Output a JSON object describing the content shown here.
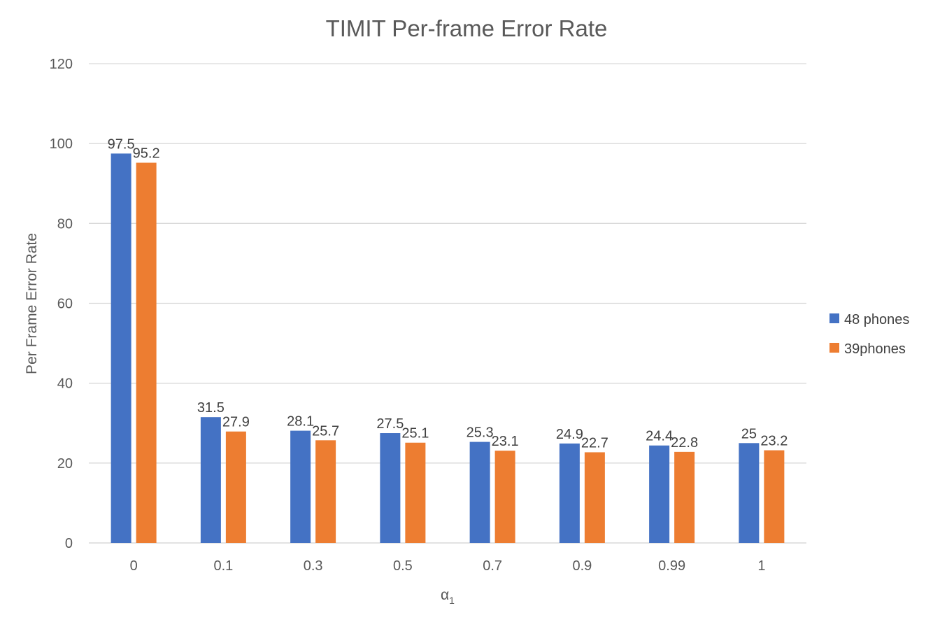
{
  "chart_data": {
    "type": "bar",
    "title": "TIMIT Per-frame Error Rate",
    "xlabel_main": "α",
    "xlabel_sub": "1",
    "ylabel": "Per Frame Error Rate",
    "categories": [
      "0",
      "0.1",
      "0.3",
      "0.5",
      "0.7",
      "0.9",
      "0.99",
      "1"
    ],
    "series": [
      {
        "name": "48 phones",
        "color": "#4472c4",
        "values": [
          97.5,
          31.5,
          28.1,
          27.5,
          25.3,
          24.9,
          24.4,
          25
        ]
      },
      {
        "name": "39phones",
        "color": "#ed7d31",
        "values": [
          95.2,
          27.9,
          25.7,
          25.1,
          23.1,
          22.7,
          22.8,
          23.2
        ]
      }
    ],
    "ylim": [
      0,
      120
    ],
    "yticks": [
      0,
      20,
      40,
      60,
      80,
      100,
      120
    ],
    "grid": true,
    "legend_position": "right"
  }
}
